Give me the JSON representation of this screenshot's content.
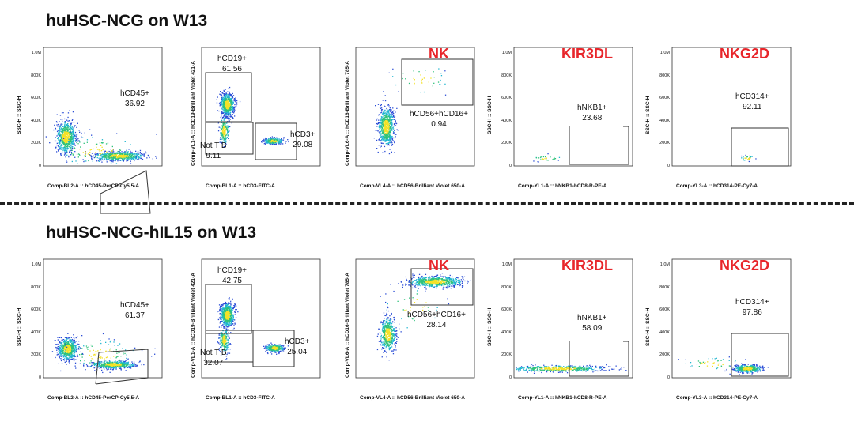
{
  "chart_data": [
    {
      "type": "scatter",
      "row": 0,
      "panel": 0,
      "title": "huHSC-NCG on W13",
      "ylabel": "SSC-H :: SSC-H",
      "xlabel": "Comp-BL2-A :: hCD45-PerCP-Cy5.5-A",
      "y_ticks": [
        "1.0M",
        "800K",
        "600K",
        "400K",
        "200K",
        "0"
      ],
      "gates": [
        {
          "name": "hCD45+",
          "percent": "36.92"
        }
      ]
    },
    {
      "type": "scatter",
      "row": 0,
      "panel": 1,
      "ylabel": "Comp-VL1-A :: hCD19-Brilliant Violet 421-A",
      "xlabel": "Comp-BL1-A :: hCD3-FITC-A",
      "gates": [
        {
          "name": "hCD19+",
          "percent": "61.56"
        },
        {
          "name": "Not T B",
          "percent": "9.11"
        },
        {
          "name": "hCD3+",
          "percent": "29.08"
        }
      ]
    },
    {
      "type": "scatter",
      "row": 0,
      "panel": 2,
      "title": "NK",
      "ylabel": "Comp-VL6-A :: hCD16-Brilliant Violet 785-A",
      "xlabel": "Comp-VL4-A :: hCD56-Brilliant Violet 650-A",
      "gates": [
        {
          "name": "hCD56+hCD16+",
          "percent": "0.94"
        }
      ]
    },
    {
      "type": "scatter",
      "row": 0,
      "panel": 3,
      "title": "KIR3DL",
      "ylabel": "SSC-H :: SSC-H",
      "xlabel": "Comp-YL1-A :: hNKB1-hCD8-R-PE-A",
      "y_ticks": [
        "1.0M",
        "800K",
        "600K",
        "400K",
        "200K",
        "0"
      ],
      "gates": [
        {
          "name": "hNKB1+",
          "percent": "23.68"
        }
      ]
    },
    {
      "type": "scatter",
      "row": 0,
      "panel": 4,
      "title": "NKG2D",
      "ylabel": "SSC-H :: SSC-H",
      "xlabel": "Comp-YL3-A :: hCD314-PE-Cy7-A",
      "y_ticks": [
        "1.0M",
        "800K",
        "600K",
        "400K",
        "200K",
        "0"
      ],
      "gates": [
        {
          "name": "hCD314+",
          "percent": "92.11"
        }
      ]
    },
    {
      "type": "scatter",
      "row": 1,
      "panel": 0,
      "title": "huHSC-NCG-hIL15 on W13",
      "ylabel": "SSC-H :: SSC-H",
      "xlabel": "Comp-BL2-A :: hCD45-PerCP-Cy5.5-A",
      "y_ticks": [
        "1.0M",
        "800K",
        "600K",
        "400K",
        "200K",
        "0"
      ],
      "gates": [
        {
          "name": "hCD45+",
          "percent": "61.37"
        }
      ]
    },
    {
      "type": "scatter",
      "row": 1,
      "panel": 1,
      "ylabel": "Comp-VL1-A :: hCD19-Brilliant Violet 421-A",
      "xlabel": "Comp-BL1-A :: hCD3-FITC-A",
      "gates": [
        {
          "name": "hCD19+",
          "percent": "42.75"
        },
        {
          "name": "Not T B",
          "percent": "32.07"
        },
        {
          "name": "hCD3+",
          "percent": "25.04"
        }
      ]
    },
    {
      "type": "scatter",
      "row": 1,
      "panel": 2,
      "title": "NK",
      "ylabel": "Comp-VL6-A :: hCD16-Brilliant Violet 785-A",
      "xlabel": "Comp-VL4-A :: hCD56-Brilliant Violet 650-A",
      "gates": [
        {
          "name": "hCD56+hCD16+",
          "percent": "28.14"
        }
      ]
    },
    {
      "type": "scatter",
      "row": 1,
      "panel": 3,
      "title": "KIR3DL",
      "ylabel": "SSC-H :: SSC-H",
      "xlabel": "Comp-YL1-A :: hNKB1-hCD8-R-PE-A",
      "y_ticks": [
        "1.0M",
        "800K",
        "600K",
        "400K",
        "200K",
        "0"
      ],
      "gates": [
        {
          "name": "hNKB1+",
          "percent": "58.09"
        }
      ]
    },
    {
      "type": "scatter",
      "row": 1,
      "panel": 4,
      "title": "NKG2D",
      "ylabel": "SSC-H :: SSC-H",
      "xlabel": "Comp-YL3-A :: hCD314-PE-Cy7-A",
      "y_ticks": [
        "1.0M",
        "800K",
        "600K",
        "400K",
        "200K",
        "0"
      ],
      "gates": [
        {
          "name": "hCD314+",
          "percent": "97.86"
        }
      ]
    }
  ],
  "colors": {
    "title_accent": "#e8262b",
    "dot_low": "#2a4cd6",
    "dot_mid": "#1fb6a0",
    "dot_high": "#f4e227"
  }
}
